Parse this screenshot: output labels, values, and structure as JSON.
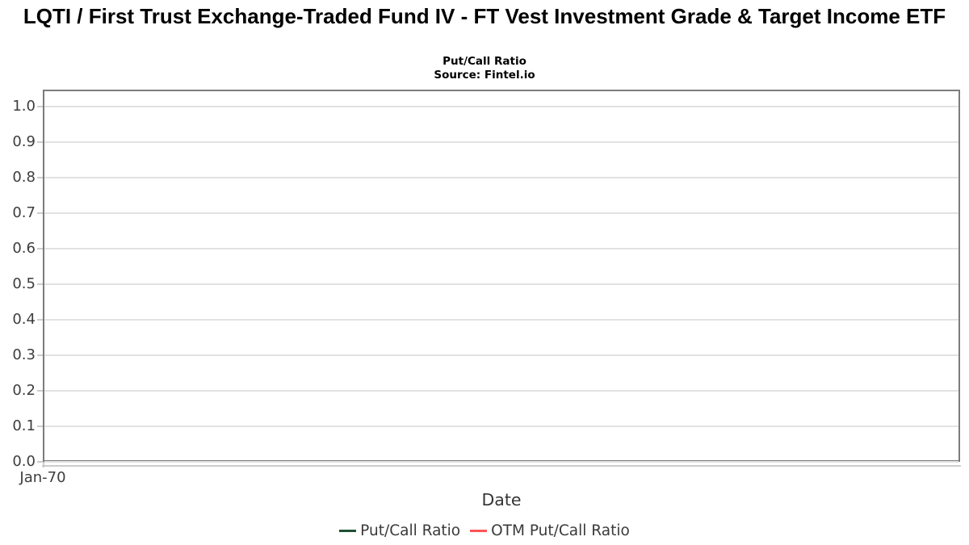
{
  "chart_data": {
    "type": "line",
    "title": "LQTI / First Trust Exchange-Traded Fund IV - FT Vest Investment Grade & Target Income ETF",
    "subtitle": "Put/Call Ratio",
    "source": "Source: Fintel.io",
    "xlabel": "Date",
    "ylabel": "",
    "ylim": [
      0.0,
      1.05
    ],
    "yticks": [
      "0.0",
      "0.1",
      "0.2",
      "0.3",
      "0.4",
      "0.5",
      "0.6",
      "0.7",
      "0.8",
      "0.9",
      "1.0"
    ],
    "xticks": [
      "Jan-70"
    ],
    "grid": true,
    "legend_position": "bottom",
    "series": [
      {
        "name": "Put/Call Ratio",
        "color": "#1f5033",
        "x": [],
        "values": []
      },
      {
        "name": "OTM Put/Call Ratio",
        "color": "#ff5454",
        "x": [],
        "values": []
      }
    ],
    "colors": {
      "grid": "#e2e2e2",
      "plot_border": "#7c7c7c",
      "axis_line": "#cccccc",
      "tick_text": "#3d3d3d",
      "title_text": "#000000"
    }
  }
}
